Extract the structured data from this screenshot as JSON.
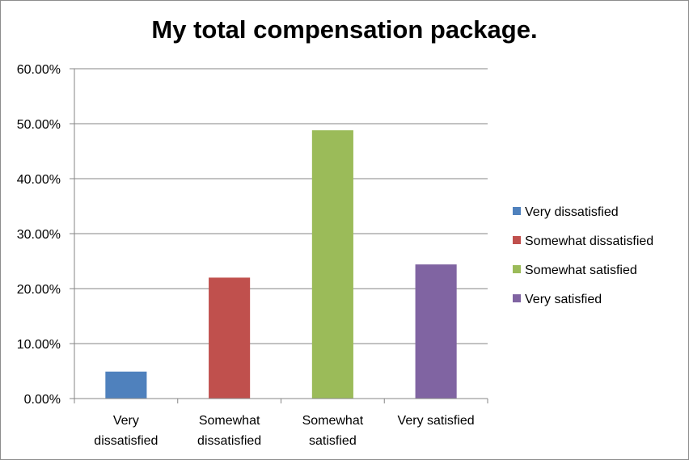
{
  "chart_data": {
    "type": "bar",
    "title": "My total compensation package.",
    "categories": [
      [
        "Very",
        "dissatisfied"
      ],
      [
        "Somewhat",
        "dissatisfied"
      ],
      [
        "Somewhat",
        "satisfied"
      ],
      [
        "Very satisfied"
      ]
    ],
    "values": [
      4.9,
      22.0,
      48.8,
      24.4
    ],
    "colors": [
      "#4f81bd",
      "#c0504d",
      "#9bbb59",
      "#8064a2"
    ],
    "ylim": [
      0,
      60
    ],
    "yticks": [
      "0.00%",
      "10.00%",
      "20.00%",
      "30.00%",
      "40.00%",
      "50.00%",
      "60.00%"
    ],
    "grid": true,
    "legend_position": "right",
    "legend": [
      "Very dissatisfied",
      "Somewhat dissatisfied",
      "Somewhat satisfied",
      "Very satisfied"
    ]
  }
}
